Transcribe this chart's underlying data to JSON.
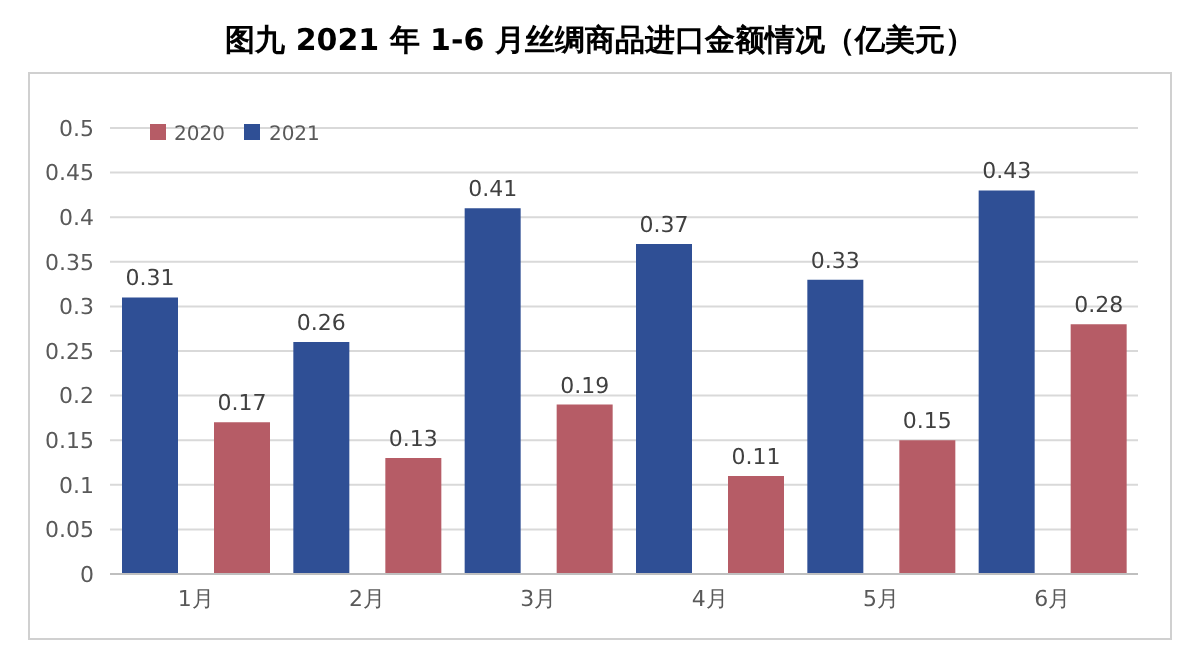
{
  "chart_data": {
    "type": "bar",
    "title": "图九  2021 年 1-6 月丝绸商品进口金额情况（亿美元）",
    "categories": [
      "1月",
      "2月",
      "3月",
      "4月",
      "5月",
      "6月"
    ],
    "series": [
      {
        "name": "2021",
        "color": "#2f4f95",
        "values": [
          0.31,
          0.26,
          0.41,
          0.37,
          0.33,
          0.43
        ]
      },
      {
        "name": "2020",
        "color": "#b65c66",
        "values": [
          0.17,
          0.13,
          0.19,
          0.11,
          0.15,
          0.28
        ]
      }
    ],
    "ylim": [
      0,
      0.5
    ],
    "yticks": [
      0,
      0.05,
      0.1,
      0.15,
      0.2,
      0.25,
      0.3,
      0.35,
      0.4,
      0.45,
      0.5
    ],
    "grid": "y",
    "legend": "top left",
    "data_labels": true
  }
}
